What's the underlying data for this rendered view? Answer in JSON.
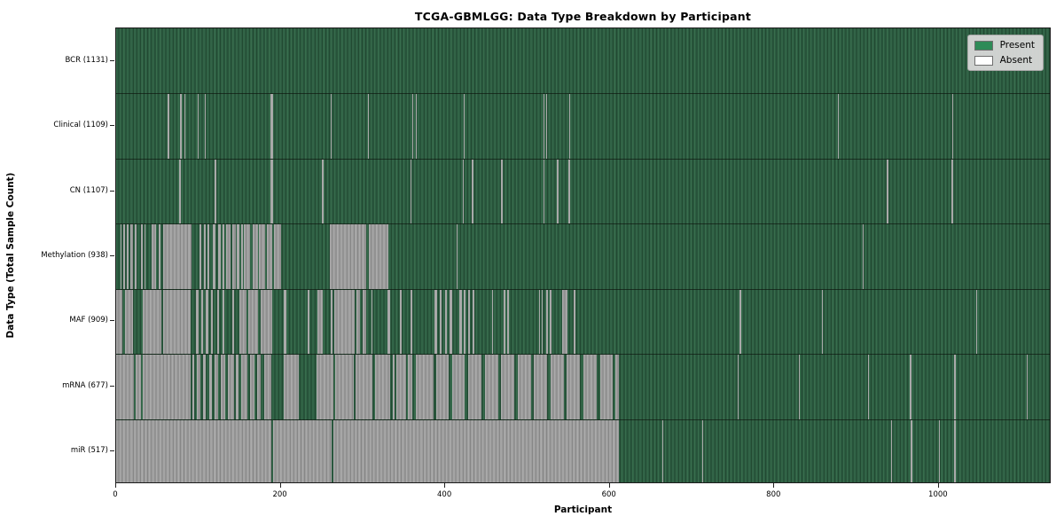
{
  "title": "TCGA-GBMLGG: Data Type Breakdown by Participant",
  "chart_data": {
    "type": "heatmap",
    "title": "TCGA-GBMLGG: Data Type Breakdown by Participant",
    "xlabel": "Participant",
    "ylabel": "Data Type (Total Sample Count)",
    "x_ticks": [
      0,
      200,
      400,
      600,
      800,
      1000
    ],
    "x_max": 1137,
    "grid": false,
    "legend": {
      "position": "upper right",
      "entries": [
        {
          "label": "Present",
          "color": "#2e8b57"
        },
        {
          "label": "Absent",
          "color": "#ffffff"
        }
      ]
    },
    "colors": {
      "present_fill": "#2c5c41",
      "present_edge": "#224a32",
      "absent_fill": "#9c9c9c",
      "absent_edge": "#878787",
      "plot_border": "#1c1c1c"
    },
    "rows": [
      {
        "label": "BCR (1131)",
        "data_type": "BCR",
        "total_samples": 1131,
        "absent_intervals": []
      },
      {
        "label": "Clinical (1109)",
        "data_type": "Clinical",
        "total_samples": 1109,
        "absent_intervals": [
          [
            63,
            64
          ],
          [
            78,
            79
          ],
          [
            83,
            84
          ],
          [
            99,
            100
          ],
          [
            108,
            109
          ],
          [
            188,
            191
          ],
          [
            261,
            262
          ],
          [
            306,
            307
          ],
          [
            360,
            361
          ],
          [
            364,
            365
          ],
          [
            422,
            423
          ],
          [
            519,
            520
          ],
          [
            523,
            524
          ],
          [
            551,
            552
          ],
          [
            877,
            878
          ],
          [
            1016,
            1017
          ]
        ]
      },
      {
        "label": "CN (1107)",
        "data_type": "CN",
        "total_samples": 1107,
        "absent_intervals": [
          [
            77,
            79
          ],
          [
            120,
            122
          ],
          [
            188,
            191
          ],
          [
            250,
            252
          ],
          [
            358,
            359
          ],
          [
            421,
            423
          ],
          [
            432,
            434
          ],
          [
            468,
            470
          ],
          [
            519,
            521
          ],
          [
            536,
            538
          ],
          [
            550,
            552
          ],
          [
            937,
            939
          ],
          [
            1015,
            1017
          ]
        ]
      },
      {
        "label": "Methylation (938)",
        "data_type": "Methylation",
        "total_samples": 938,
        "absent_intervals": [
          [
            5,
            7
          ],
          [
            9,
            11
          ],
          [
            13,
            15
          ],
          [
            17,
            21
          ],
          [
            23,
            25
          ],
          [
            30,
            32
          ],
          [
            34,
            36
          ],
          [
            43,
            48
          ],
          [
            52,
            54
          ],
          [
            57,
            92
          ],
          [
            101,
            104
          ],
          [
            107,
            109
          ],
          [
            111,
            113
          ],
          [
            118,
            121
          ],
          [
            124,
            127
          ],
          [
            129,
            131
          ],
          [
            134,
            139
          ],
          [
            141,
            145
          ],
          [
            147,
            150
          ],
          [
            152,
            154
          ],
          [
            155,
            163
          ],
          [
            166,
            172
          ],
          [
            174,
            181
          ],
          [
            183,
            190
          ],
          [
            192,
            200
          ],
          [
            260,
            304
          ],
          [
            307,
            331
          ],
          [
            414,
            415
          ],
          [
            907,
            908
          ]
        ]
      },
      {
        "label": "MAF (909)",
        "data_type": "MAF",
        "total_samples": 909,
        "absent_intervals": [
          [
            0,
            8
          ],
          [
            11,
            20
          ],
          [
            32,
            55
          ],
          [
            57,
            91
          ],
          [
            97,
            100
          ],
          [
            103,
            106
          ],
          [
            109,
            112
          ],
          [
            115,
            118
          ],
          [
            123,
            125
          ],
          [
            129,
            132
          ],
          [
            141,
            143
          ],
          [
            150,
            158
          ],
          [
            161,
            172
          ],
          [
            176,
            190
          ],
          [
            204,
            207
          ],
          [
            233,
            235
          ],
          [
            245,
            251
          ],
          [
            261,
            263
          ],
          [
            265,
            290
          ],
          [
            292,
            296
          ],
          [
            300,
            304
          ],
          [
            310,
            312
          ],
          [
            330,
            333
          ],
          [
            345,
            347
          ],
          [
            358,
            360
          ],
          [
            387,
            390
          ],
          [
            393,
            396
          ],
          [
            400,
            402
          ],
          [
            405,
            408
          ],
          [
            417,
            420
          ],
          [
            422,
            425
          ],
          [
            428,
            430
          ],
          [
            433,
            435
          ],
          [
            457,
            458
          ],
          [
            471,
            473
          ],
          [
            475,
            477
          ],
          [
            514,
            515
          ],
          [
            517,
            518
          ],
          [
            523,
            525
          ],
          [
            527,
            529
          ],
          [
            542,
            549
          ],
          [
            556,
            558
          ],
          [
            758,
            760
          ],
          [
            858,
            859
          ],
          [
            1045,
            1046
          ]
        ]
      },
      {
        "label": "mRNA (677)",
        "data_type": "mRNA",
        "total_samples": 677,
        "absent_intervals": [
          [
            0,
            22
          ],
          [
            24,
            30
          ],
          [
            32,
            90
          ],
          [
            93,
            95
          ],
          [
            98,
            102
          ],
          [
            106,
            109
          ],
          [
            113,
            116
          ],
          [
            120,
            124
          ],
          [
            127,
            133
          ],
          [
            136,
            143
          ],
          [
            146,
            149
          ],
          [
            152,
            160
          ],
          [
            163,
            168
          ],
          [
            171,
            176
          ],
          [
            180,
            189
          ],
          [
            204,
            222
          ],
          [
            244,
            264
          ],
          [
            266,
            289
          ],
          [
            291,
            312
          ],
          [
            315,
            333
          ],
          [
            336,
            338
          ],
          [
            341,
            352
          ],
          [
            355,
            360
          ],
          [
            364,
            386
          ],
          [
            389,
            404
          ],
          [
            408,
            424
          ],
          [
            428,
            444
          ],
          [
            448,
            464
          ],
          [
            468,
            484
          ],
          [
            488,
            504
          ],
          [
            508,
            524
          ],
          [
            528,
            544
          ],
          [
            548,
            564
          ],
          [
            568,
            584
          ],
          [
            588,
            604
          ],
          [
            607,
            611
          ],
          [
            755,
            756
          ],
          [
            830,
            831
          ],
          [
            914,
            915
          ],
          [
            965,
            966
          ],
          [
            1018,
            1021
          ],
          [
            1107,
            1108
          ]
        ]
      },
      {
        "label": "miR (517)",
        "data_type": "miR",
        "total_samples": 517,
        "absent_intervals": [
          [
            0,
            189
          ],
          [
            191,
            262
          ],
          [
            264,
            611
          ],
          [
            664,
            665
          ],
          [
            712,
            713
          ],
          [
            942,
            943
          ],
          [
            966,
            967
          ],
          [
            1000,
            1001
          ],
          [
            1018,
            1021
          ]
        ]
      }
    ]
  }
}
